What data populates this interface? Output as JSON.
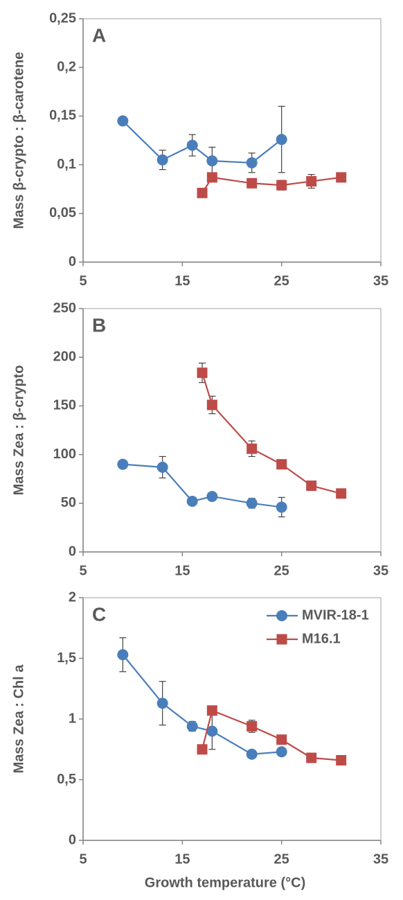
{
  "chart_data": [
    {
      "type": "line",
      "annotation": "A",
      "ylabel": "Mass  β-crypto : β-carotene",
      "xlim": [
        5,
        35
      ],
      "xticks": [
        5,
        15,
        25,
        35
      ],
      "ylim": [
        0,
        0.25
      ],
      "yticks": [
        0,
        {
          "value": 0.05,
          "label": "0,05"
        },
        {
          "value": 0.1,
          "label": "0,1"
        },
        {
          "value": 0.15,
          "label": "0,15"
        },
        {
          "value": 0.2,
          "label": "0,2"
        },
        {
          "value": 0.25,
          "label": "0,25"
        }
      ],
      "series": [
        {
          "name": "MVIR-18-1",
          "color": "#4a7ebb",
          "marker": "circle",
          "x": [
            9,
            13,
            16,
            18,
            22,
            25
          ],
          "values": [
            0.145,
            0.105,
            0.12,
            0.104,
            0.102,
            0.126
          ],
          "errors": [
            null,
            0.01,
            0.011,
            0.014,
            0.01,
            0.034
          ]
        },
        {
          "name": "M16.1",
          "color": "#be4b48",
          "marker": "square",
          "x": [
            17,
            18,
            22,
            25,
            28,
            31
          ],
          "values": [
            0.071,
            0.087,
            0.081,
            0.079,
            0.083,
            0.087
          ],
          "errors": [
            null,
            null,
            null,
            0.005,
            0.007,
            null
          ]
        }
      ]
    },
    {
      "type": "line",
      "annotation": "B",
      "ylabel": "Mass Zea : β-crypto",
      "xlim": [
        5,
        35
      ],
      "xticks": [
        5,
        15,
        25,
        35
      ],
      "ylim": [
        0,
        250
      ],
      "yticks": [
        0,
        50,
        100,
        150,
        200,
        250
      ],
      "series": [
        {
          "name": "MVIR-18-1",
          "color": "#4a7ebb",
          "marker": "circle",
          "x": [
            9,
            13,
            16,
            18,
            22,
            25
          ],
          "values": [
            90,
            87,
            52,
            57,
            50,
            46
          ],
          "errors": [
            null,
            11,
            null,
            null,
            5,
            10
          ]
        },
        {
          "name": "M16.1",
          "color": "#be4b48",
          "marker": "square",
          "x": [
            17,
            18,
            22,
            25,
            28,
            31
          ],
          "values": [
            184,
            151,
            106,
            90,
            68,
            60
          ],
          "errors": [
            10,
            9,
            8,
            null,
            null,
            3
          ]
        }
      ]
    },
    {
      "type": "line",
      "annotation": "C",
      "ylabel": "Mass Zea : Chl a",
      "xlabel": "Growth temperature (°C)",
      "legend": "upper right",
      "xlim": [
        5,
        35
      ],
      "xticks": [
        5,
        15,
        25,
        35
      ],
      "ylim": [
        0,
        2
      ],
      "yticks": [
        0,
        {
          "value": 0.5,
          "label": "0,5"
        },
        1,
        {
          "value": 1.5,
          "label": "1,5"
        },
        2
      ],
      "series": [
        {
          "name": "MVIR-18-1",
          "color": "#4a7ebb",
          "marker": "circle",
          "x": [
            9,
            13,
            16,
            18,
            22,
            25
          ],
          "values": [
            1.53,
            1.13,
            0.94,
            0.9,
            0.71,
            0.73
          ],
          "errors": [
            0.14,
            0.18,
            0.04,
            0.15,
            0.03,
            null
          ]
        },
        {
          "name": "M16.1",
          "color": "#be4b48",
          "marker": "square",
          "x": [
            17,
            18,
            22,
            25,
            28,
            31
          ],
          "values": [
            0.75,
            1.07,
            0.94,
            0.83,
            0.68,
            0.66
          ],
          "errors": [
            null,
            null,
            0.05,
            null,
            null,
            null
          ]
        }
      ]
    }
  ]
}
